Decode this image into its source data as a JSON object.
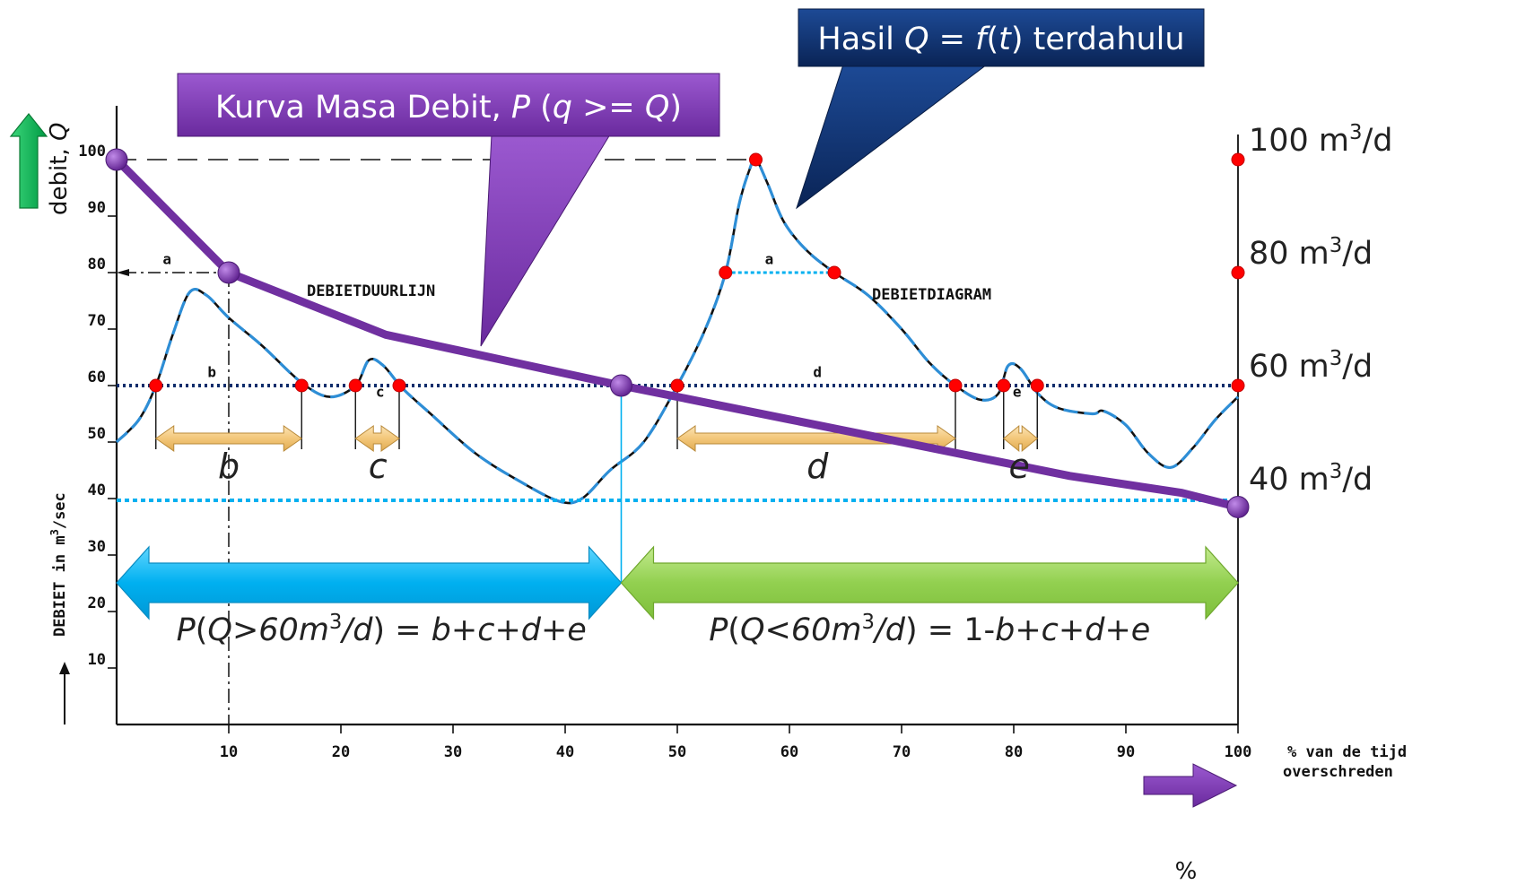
{
  "chart_data": {
    "type": "line",
    "x_axis": {
      "range": [
        0,
        100
      ],
      "ticks": [
        "10",
        "20",
        "30",
        "40",
        "50",
        "60",
        "70",
        "80",
        "90",
        "100"
      ],
      "label_line1": "% van de tijd",
      "label_line2": "overschreden",
      "unit_symbol": "%"
    },
    "y_axis": {
      "range": [
        0,
        100
      ],
      "ticks": [
        "10",
        "20",
        "30",
        "40",
        "50",
        "60",
        "70",
        "80",
        "90",
        "100"
      ],
      "label": "DEBIET in m³/sec",
      "label_parts": [
        "DEBIET  in  m",
        "3",
        "/sec"
      ],
      "side_label": "debit, Q"
    },
    "right_axis_labels": [
      {
        "value": 100,
        "text": "100 m",
        "sup": "3",
        "suffix": "/d"
      },
      {
        "value": 80,
        "text": "80 m",
        "sup": "3",
        "suffix": "/d"
      },
      {
        "value": 60,
        "text": "60 m",
        "sup": "3",
        "suffix": "/d"
      },
      {
        "value": 40,
        "text": "40 m",
        "sup": "3",
        "suffix": "/d"
      }
    ],
    "series": [
      {
        "name": "DEBIETDUURLIJN",
        "kind": "duration-curve",
        "x": [
          0,
          10,
          24,
          45,
          60,
          75,
          85,
          95,
          100
        ],
        "y": [
          100,
          80,
          69,
          60,
          54,
          48,
          44,
          41,
          38.5
        ]
      },
      {
        "name": "DEBIETDIAGRAM",
        "kind": "hydrograph",
        "x": [
          0,
          2,
          3.5,
          5,
          6.5,
          8,
          10,
          13,
          16.5,
          19,
          21.3,
          22.5,
          23.8,
          25.5,
          28,
          32,
          36,
          39.5,
          41.5,
          44,
          47,
          50,
          52.5,
          54.3,
          55.5,
          56.4,
          57,
          58,
          59.5,
          61.5,
          64,
          67,
          70,
          72.5,
          74.8,
          77,
          78.6,
          79.5,
          80.6,
          82.2,
          84,
          87,
          88,
          90,
          92,
          94,
          96,
          98,
          100
        ],
        "y": [
          50,
          54,
          60,
          69,
          76.5,
          76,
          72,
          67,
          60.5,
          58,
          60,
          64.5,
          63.5,
          59.5,
          55,
          48,
          43,
          39.5,
          40,
          45,
          50,
          60,
          70,
          80,
          92,
          98,
          100,
          96,
          89,
          84,
          80,
          76,
          70,
          64,
          60,
          57.5,
          58.5,
          63.5,
          63,
          58.5,
          56,
          55,
          55.5,
          53,
          48,
          45.5,
          49,
          54,
          58
        ]
      }
    ],
    "threshold_lines": [
      {
        "value": 60,
        "style": "dark-dotted"
      },
      {
        "value": 40,
        "style": "cyan-dotted"
      }
    ],
    "reference_lines": [
      {
        "value": 100,
        "style": "dashed"
      },
      {
        "value": 80,
        "style": "dash-dot-left"
      },
      {
        "x_value": 10,
        "style": "dash-dot-vertical"
      }
    ],
    "crossing_markers": [
      {
        "x": 3.5,
        "y": 60
      },
      {
        "x": 16.5,
        "y": 60
      },
      {
        "x": 21.3,
        "y": 60
      },
      {
        "x": 25.2,
        "y": 60
      },
      {
        "x": 50,
        "y": 60
      },
      {
        "x": 74.8,
        "y": 60
      },
      {
        "x": 79.1,
        "y": 60
      },
      {
        "x": 82.1,
        "y": 60
      },
      {
        "x": 54.3,
        "y": 80
      },
      {
        "x": 64,
        "y": 80
      },
      {
        "x": 57,
        "y": 100
      },
      {
        "x": 100,
        "y": 100
      },
      {
        "x": 100,
        "y": 80
      },
      {
        "x": 100,
        "y": 60
      }
    ],
    "duration_markers": [
      {
        "x": 0,
        "y": 100
      },
      {
        "x": 10,
        "y": 80
      },
      {
        "x": 45,
        "y": 60
      },
      {
        "x": 100,
        "y": 38.5
      }
    ],
    "intervals_at_60": [
      {
        "label": "b",
        "x0": 3.5,
        "x1": 16.5
      },
      {
        "label": "c",
        "x0": 21.3,
        "x1": 25.2
      },
      {
        "label": "d",
        "x0": 50,
        "x1": 74.8
      },
      {
        "label": "e",
        "x0": 79.1,
        "x1": 82.1
      }
    ],
    "small_labels": [
      {
        "text": "a",
        "x": 4.5,
        "y": 81.5
      },
      {
        "text": "a",
        "x": 58.2,
        "y": 81.5
      },
      {
        "text": "b",
        "x": 8.5,
        "y": 61.5
      },
      {
        "text": "c",
        "x": 23.5,
        "y": 58
      },
      {
        "text": "d",
        "x": 62.5,
        "y": 61.5
      },
      {
        "text": "e",
        "x": 80.3,
        "y": 58
      }
    ],
    "interval_big_labels": [
      {
        "text": "b",
        "x": 10,
        "y": 45
      },
      {
        "text": "c",
        "x": 23.3,
        "y": 45
      },
      {
        "text": "d",
        "x": 62.5,
        "y": 45
      },
      {
        "text": "e",
        "x": 80.5,
        "y": 45
      }
    ],
    "probability_split_x": 45,
    "prob_left": {
      "label_parts": [
        "P",
        "(",
        "Q>60m",
        "3",
        "/d",
        ") = ",
        "b+c+d+e"
      ]
    },
    "prob_right": {
      "label_parts": [
        "P",
        "(",
        "Q<60m",
        "3",
        "/d",
        ") = 1-",
        "b+c+d+e"
      ]
    },
    "series_labels": {
      "duration": "DEBIETDUURLIJN",
      "diagram": "DEBIETDIAGRAM"
    },
    "callouts": {
      "mass_curve": {
        "parts": [
          "Kurva Masa Debit, ",
          "P",
          " (",
          "q",
          " >= ",
          "Q",
          ")"
        ]
      },
      "previous": {
        "parts": [
          "Hasil ",
          "Q",
          " = ",
          "f",
          "(",
          "t",
          ") terdahulu"
        ]
      }
    },
    "colors": {
      "purple": "#7030a0",
      "purple_light": "#8e4cc4",
      "navy": "#0d2d6b",
      "cyan": "#00b0f0",
      "green": "#92d050",
      "gold": "#f3c77a",
      "red": "#ff0000",
      "hydro_blue": "#2e8ed6",
      "up_arrow_green": "#00b050"
    }
  }
}
